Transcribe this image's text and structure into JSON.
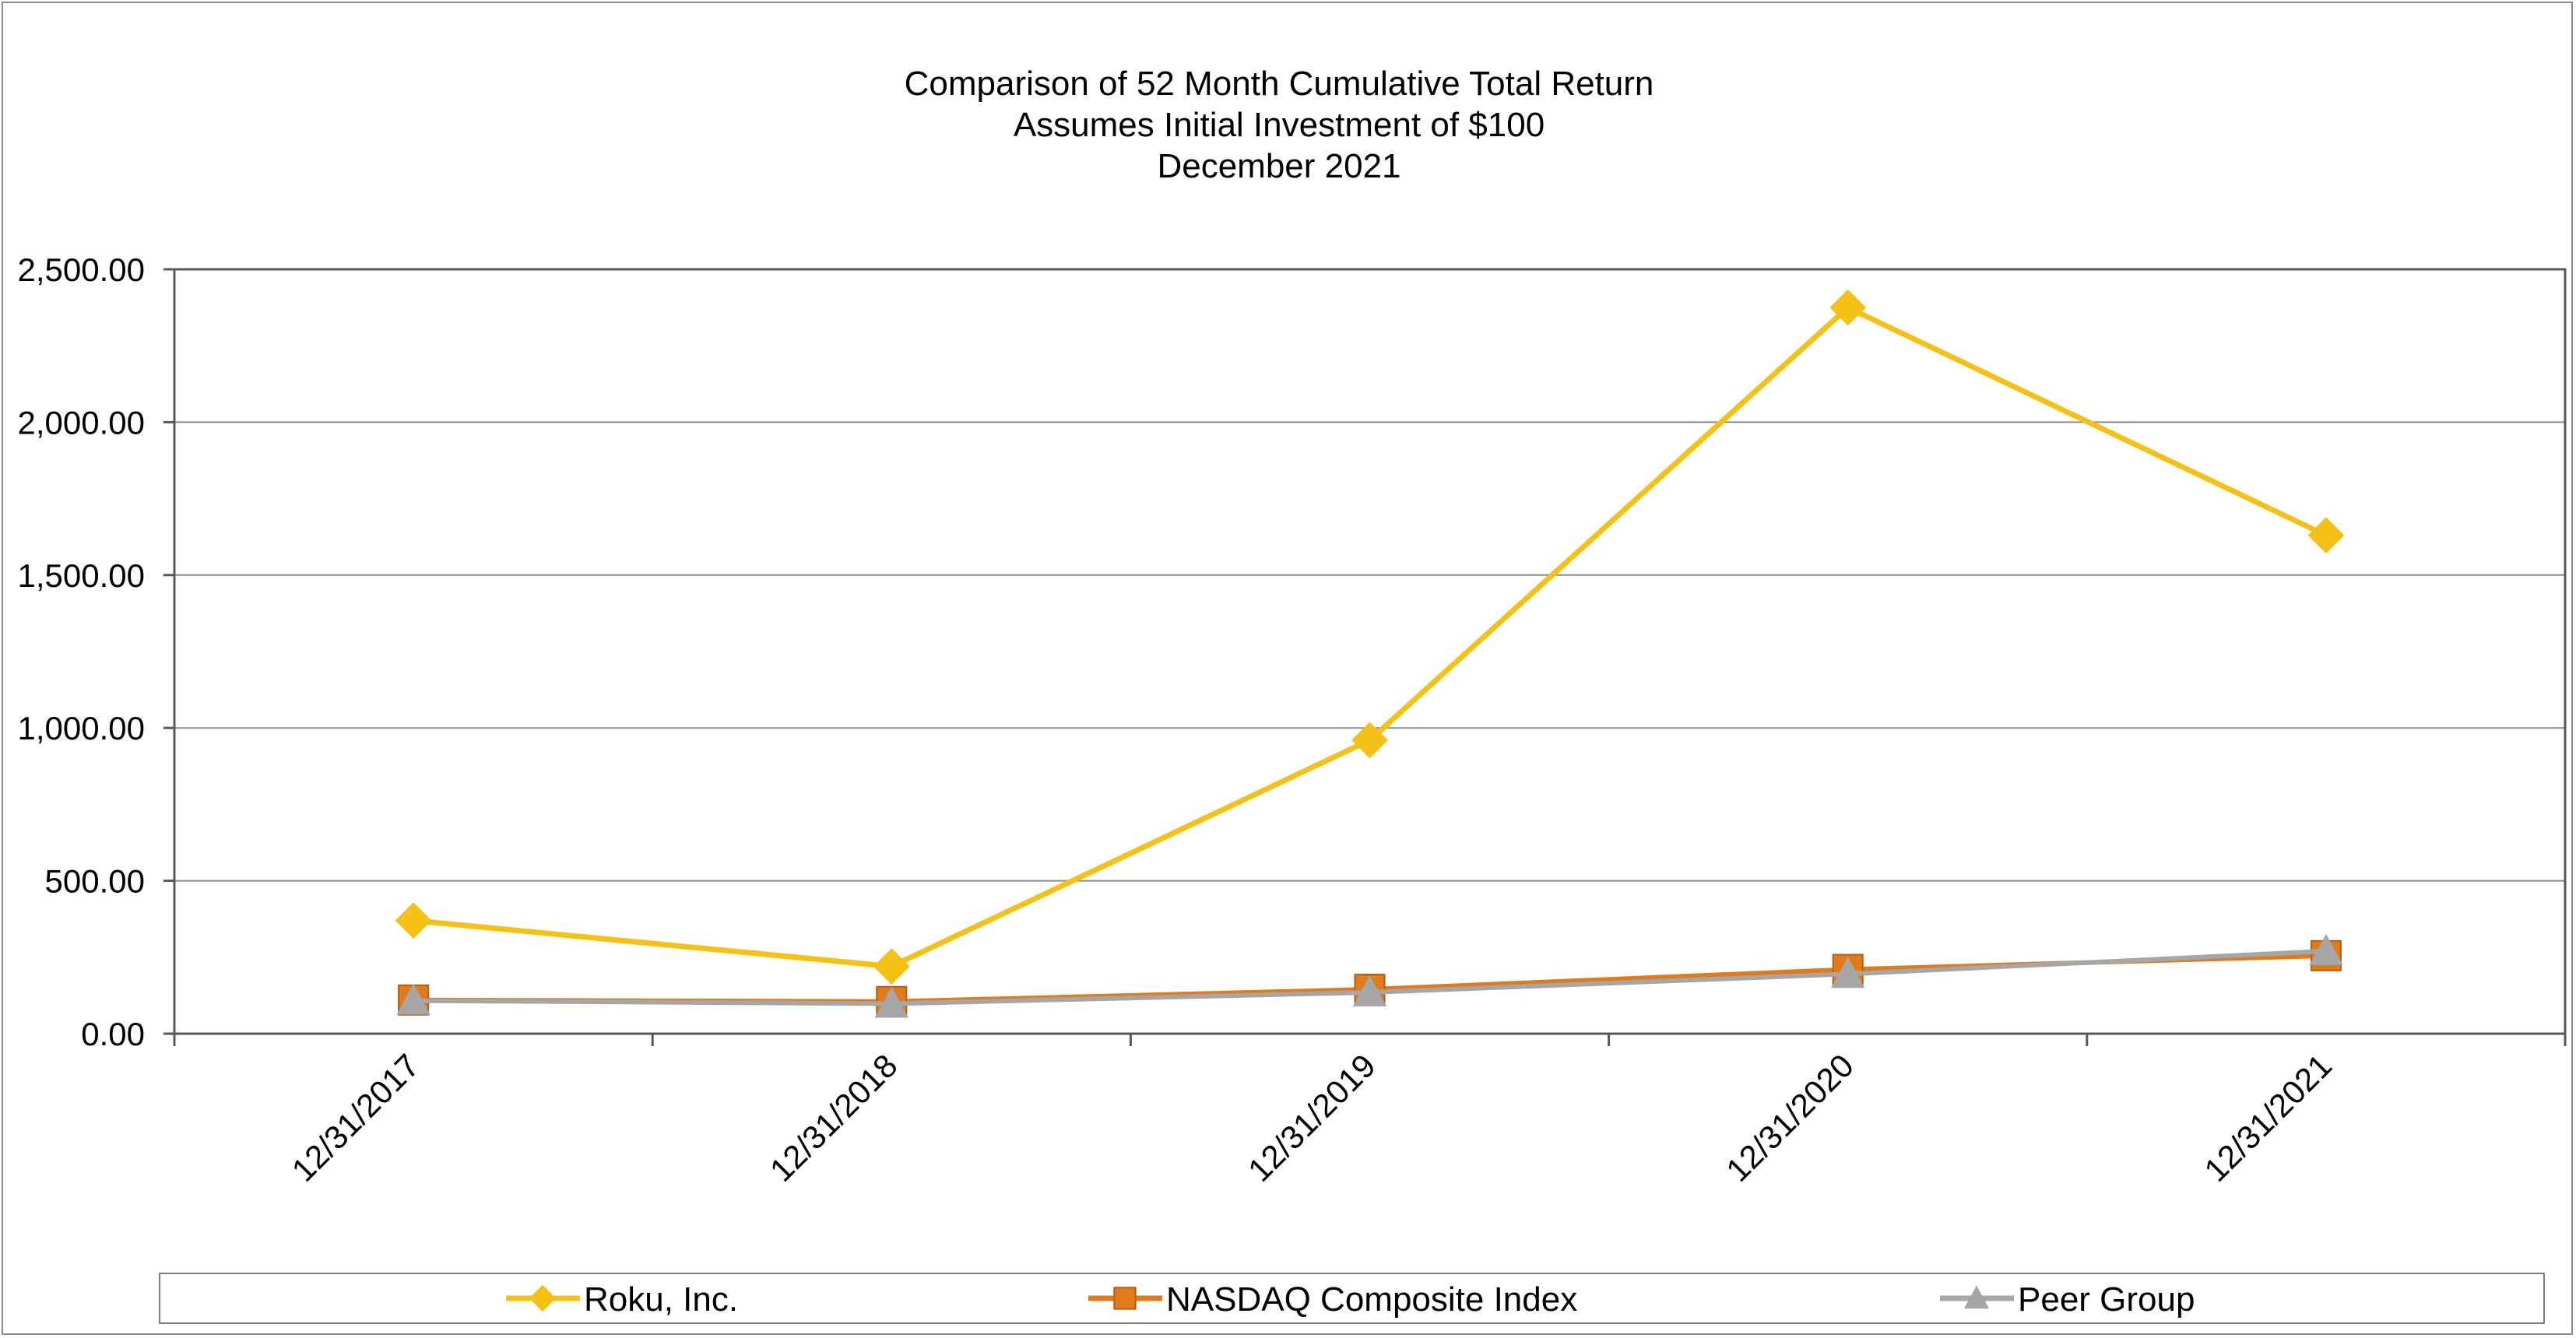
{
  "chart_data": {
    "type": "line",
    "title_lines": [
      "Comparison of 52 Month Cumulative Total Return",
      "Assumes Initial Investment of $100",
      "December 2021"
    ],
    "xlabel": "",
    "ylabel": "",
    "categories": [
      "12/31/2017",
      "12/31/2018",
      "12/31/2019",
      "12/31/2020",
      "12/31/2021"
    ],
    "ylim": [
      0,
      2500
    ],
    "yticks": [
      0,
      500,
      1000,
      1500,
      2000,
      2500
    ],
    "ytick_labels": [
      "0.00",
      "500.00",
      "1,000.00",
      "1,500.00",
      "2,000.00",
      "2,500.00"
    ],
    "grid": true,
    "legend_position": "bottom",
    "series": [
      {
        "name": "Roku, Inc.",
        "color": "#f5c117",
        "marker": "diamond",
        "values": [
          370,
          220,
          960,
          2375,
          1630
        ]
      },
      {
        "name": "NASDAQ Composite Index",
        "color": "#e07b1b",
        "marker": "square",
        "values": [
          110,
          105,
          145,
          210,
          255
        ]
      },
      {
        "name": "Peer Group",
        "color": "#a6a6a6",
        "marker": "triangle",
        "values": [
          108,
          98,
          135,
          195,
          270
        ]
      }
    ]
  }
}
